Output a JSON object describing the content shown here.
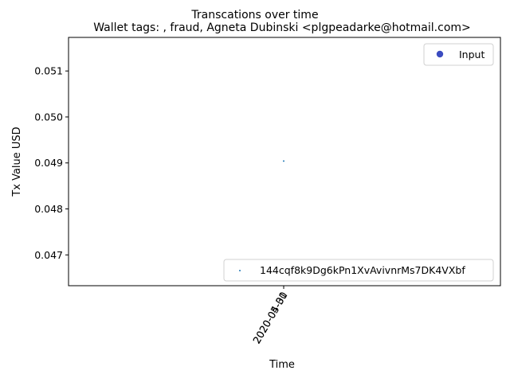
{
  "chart_data": {
    "type": "scatter",
    "suptitle": "Transcations over time",
    "title": "Wallet tags: , fraud, Agneta Dubinski <plgpeadarke@hotmail.com>",
    "xlabel": "Time",
    "ylabel": "Tx Value USD",
    "ylim": [
      0.04633,
      0.05173
    ],
    "yticks": [
      0.047,
      0.048,
      0.049,
      0.05,
      0.051
    ],
    "ytick_labels": [
      "0.047",
      "0.048",
      "0.049",
      "0.050",
      "0.051"
    ],
    "xtick_labels": [
      "2020-04-30",
      "2020-05-01"
    ],
    "grid": false,
    "series": [
      {
        "name": "144cqf8k9Dg6kPn1XvAvivnrMs7DK4VXbf",
        "color": "#1f77b4",
        "points": [
          {
            "x": "2020-04-30",
            "y": 0.04904
          }
        ]
      }
    ],
    "legends": [
      {
        "placement": "upper right",
        "entries": [
          {
            "label": "Input",
            "marker": "circle",
            "color": "#3b4cc0"
          }
        ]
      },
      {
        "placement": "lower right",
        "entries": [
          {
            "label": "144cqf8k9Dg6kPn1XvAvivnrMs7DK4VXbf",
            "marker": "dot",
            "color": "#1f77b4"
          }
        ]
      }
    ]
  }
}
